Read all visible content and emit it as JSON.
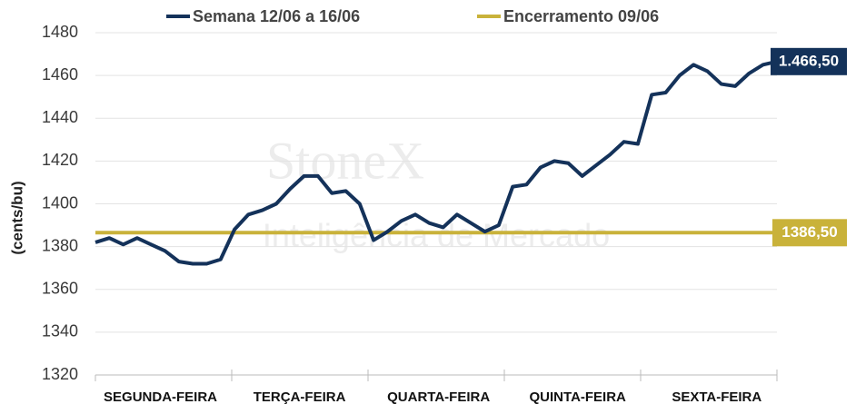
{
  "chart_data": {
    "type": "line",
    "y_label": "(cents/bu)",
    "watermark": [
      "StoneX",
      "Inteligência de Mercado"
    ],
    "categories": [
      null,
      null,
      null,
      null,
      null,
      "SEGUNDA-FEIRA",
      null,
      null,
      null,
      null,
      null,
      null,
      null,
      null,
      null,
      "TERÇA-FEIRA",
      null,
      null,
      null,
      null,
      null,
      null,
      null,
      null,
      null,
      "QUARTA-FEIRA",
      null,
      null,
      null,
      null,
      null,
      null,
      null,
      null,
      null,
      "QUINTA-FEIRA",
      null,
      null,
      null,
      null,
      null,
      null,
      null,
      null,
      null,
      "SEXTA-FEIRA",
      null,
      null,
      null,
      null
    ],
    "series": [
      {
        "name": "Semana 12/06 a 16/06",
        "color": "#14325a",
        "values": [
          1382,
          1384,
          1381,
          1384,
          1381,
          1378,
          1373,
          1372,
          1372,
          1374,
          1388,
          1395,
          1397,
          1400,
          1407,
          1413,
          1413,
          1405,
          1406,
          1400,
          1383,
          1387,
          1392,
          1395,
          1391,
          1389,
          1395,
          1391,
          1387,
          1390,
          1408,
          1409,
          1417,
          1420,
          1419,
          1413,
          1418,
          1423,
          1429,
          1428,
          1451,
          1452,
          1460,
          1465,
          1462,
          1456,
          1455,
          1461,
          1465,
          1466.5
        ],
        "last_label": {
          "value": 1466.5,
          "label": "1.466,50"
        }
      }
    ],
    "reference": {
      "name": "Encerramento 09/06",
      "color": "#c9b23a",
      "value": 1386.5,
      "label": "1386,50"
    },
    "ylim": [
      1320,
      1480
    ],
    "yticks": [
      1320,
      1340,
      1360,
      1380,
      1400,
      1420,
      1440,
      1460,
      1480
    ],
    "grid": true
  }
}
